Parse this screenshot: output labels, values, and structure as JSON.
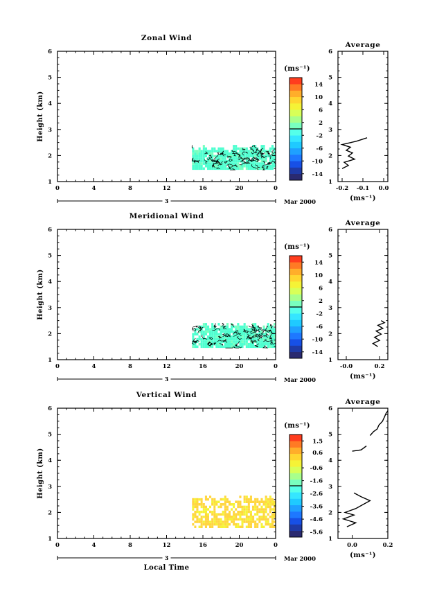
{
  "figure": {
    "common_date_label": "Mar 2000",
    "xlabel": "Local Time"
  },
  "chart_data": [
    {
      "type": "heatmap",
      "title": "Zonal Wind",
      "ylabel": "Height (km)",
      "xlabel": "",
      "x_ticks": [
        "0",
        "4",
        "8",
        "12",
        "16",
        "20",
        "0"
      ],
      "xlim": [
        0,
        24
      ],
      "y_ticks": [
        1,
        2,
        3,
        4,
        5,
        6
      ],
      "ylim": [
        1,
        6
      ],
      "date_axis": {
        "day": "3",
        "label": "Mar 2000"
      },
      "data_extent": {
        "local_time": [
          14.8,
          24
        ],
        "height_km": [
          1.45,
          2.4
        ]
      },
      "dominant_color": "#4fffd0",
      "contours": "black, dense",
      "colorbar": {
        "unit": "(ms⁻¹)",
        "tick_labels": [
          14,
          10,
          6,
          2,
          -2,
          -6,
          -10,
          -14
        ],
        "range": [
          -16,
          16
        ],
        "colors": [
          "#2a2a70",
          "#1f3aa6",
          "#1750e6",
          "#1e78ff",
          "#1fa0ff",
          "#1fcaff",
          "#35e6ff",
          "#55ffea",
          "#79ffbf",
          "#a8ff8c",
          "#d8ff58",
          "#f5f336",
          "#ffd630",
          "#ffae2a",
          "#ff7a24",
          "#ff3d1e"
        ]
      },
      "average_profile": {
        "title": "Average",
        "xlabel": "(ms⁻¹)",
        "x_ticks": [
          "-0.2",
          "-0.1",
          "0.0"
        ],
        "xlim": [
          -0.22,
          0.02
        ],
        "y_ticks": [
          1,
          2,
          3,
          4,
          5,
          6
        ],
        "ylim": [
          1,
          6
        ],
        "points": [
          [
            -0.2,
            1.5
          ],
          [
            -0.17,
            1.62
          ],
          [
            -0.19,
            1.74
          ],
          [
            -0.14,
            1.86
          ],
          [
            -0.17,
            1.98
          ],
          [
            -0.15,
            2.1
          ],
          [
            -0.18,
            2.2
          ],
          [
            -0.16,
            2.32
          ],
          [
            -0.2,
            2.42
          ],
          [
            -0.13,
            2.55
          ],
          [
            -0.08,
            2.68
          ]
        ]
      }
    },
    {
      "type": "heatmap",
      "title": "Meridional Wind",
      "ylabel": "Height (km)",
      "xlabel": "",
      "x_ticks": [
        "0",
        "4",
        "8",
        "12",
        "16",
        "20",
        "0"
      ],
      "xlim": [
        0,
        24
      ],
      "y_ticks": [
        1,
        2,
        3,
        4,
        5,
        6
      ],
      "ylim": [
        1,
        6
      ],
      "date_axis": {
        "day": "3",
        "label": "Mar 2000"
      },
      "data_extent": {
        "local_time": [
          14.8,
          24
        ],
        "height_km": [
          1.45,
          2.4
        ]
      },
      "dominant_color": "#4fffd0",
      "contours": "black, dense",
      "colorbar": {
        "unit": "(ms⁻¹)",
        "tick_labels": [
          14,
          10,
          6,
          2,
          -2,
          -6,
          -10,
          -14
        ],
        "range": [
          -16,
          16
        ],
        "colors": [
          "#2a2a70",
          "#1f3aa6",
          "#1750e6",
          "#1e78ff",
          "#1fa0ff",
          "#1fcaff",
          "#35e6ff",
          "#55ffea",
          "#79ffbf",
          "#a8ff8c",
          "#d8ff58",
          "#f5f336",
          "#ffd630",
          "#ffae2a",
          "#ff7a24",
          "#ff3d1e"
        ]
      },
      "average_profile": {
        "title": "Average",
        "xlabel": "(ms⁻¹)",
        "x_ticks": [
          "-0.0",
          "0.2"
        ],
        "xlim": [
          -0.05,
          0.25
        ],
        "y_ticks": [
          1,
          2,
          3,
          4,
          5,
          6
        ],
        "ylim": [
          1,
          6
        ],
        "points": [
          [
            0.19,
            1.5
          ],
          [
            0.16,
            1.62
          ],
          [
            0.2,
            1.74
          ],
          [
            0.17,
            1.86
          ],
          [
            0.21,
            1.98
          ],
          [
            0.18,
            2.1
          ],
          [
            0.22,
            2.2
          ],
          [
            0.19,
            2.32
          ],
          [
            0.23,
            2.42
          ],
          [
            0.21,
            2.5
          ]
        ]
      }
    },
    {
      "type": "heatmap",
      "title": "Vertical Wind",
      "ylabel": "Height (km)",
      "xlabel": "Local Time",
      "x_ticks": [
        "0",
        "4",
        "8",
        "12",
        "16",
        "20",
        "0"
      ],
      "xlim": [
        0,
        24
      ],
      "y_ticks": [
        1,
        2,
        3,
        4,
        5,
        6
      ],
      "ylim": [
        1,
        6
      ],
      "date_axis": {
        "day": "3",
        "label": "Mar 2000"
      },
      "data_extent": {
        "local_time": [
          14.8,
          24
        ],
        "height_km": [
          1.4,
          2.65
        ]
      },
      "dominant_color": "#ffd640",
      "contours": "none",
      "colorbar": {
        "unit": "(ms⁻¹)",
        "tick_labels": [
          1.5,
          0.6,
          -0.6,
          -1.6,
          -2.6,
          -3.6,
          -4.6,
          -5.6
        ],
        "range": [
          -6.0,
          2.0
        ],
        "colors": [
          "#2a2a70",
          "#1f3aa6",
          "#1750e6",
          "#1e78ff",
          "#1fa0ff",
          "#1fcaff",
          "#35e6ff",
          "#55ffea",
          "#79ffbf",
          "#a8ff8c",
          "#d8ff58",
          "#f5f336",
          "#ffd630",
          "#ffae2a",
          "#ff7a24",
          "#ff3d1e"
        ]
      },
      "average_profile": {
        "title": "Average",
        "xlabel": "(ms⁻¹)",
        "x_ticks": [
          "0.0",
          "0.2"
        ],
        "xlim": [
          -0.08,
          0.2
        ],
        "y_ticks": [
          1,
          2,
          3,
          4,
          5,
          6
        ],
        "ylim": [
          1,
          6
        ],
        "segments": [
          [
            [
              -0.03,
              1.45
            ],
            [
              0.02,
              1.6
            ],
            [
              -0.05,
              1.75
            ],
            [
              0.01,
              1.9
            ],
            [
              -0.04,
              2.0
            ],
            [
              0.02,
              2.15
            ],
            [
              0.06,
              2.3
            ],
            [
              0.1,
              2.45
            ],
            [
              0.05,
              2.6
            ],
            [
              0.01,
              2.75
            ]
          ],
          [
            [
              0.0,
              4.35
            ],
            [
              0.05,
              4.4
            ],
            [
              0.08,
              4.55
            ]
          ],
          [
            [
              0.1,
              4.95
            ],
            [
              0.12,
              5.1
            ],
            [
              0.14,
              5.2
            ],
            [
              0.15,
              5.35
            ],
            [
              0.17,
              5.5
            ],
            [
              0.18,
              5.65
            ],
            [
              0.19,
              5.8
            ],
            [
              0.2,
              5.9
            ]
          ]
        ]
      }
    }
  ]
}
